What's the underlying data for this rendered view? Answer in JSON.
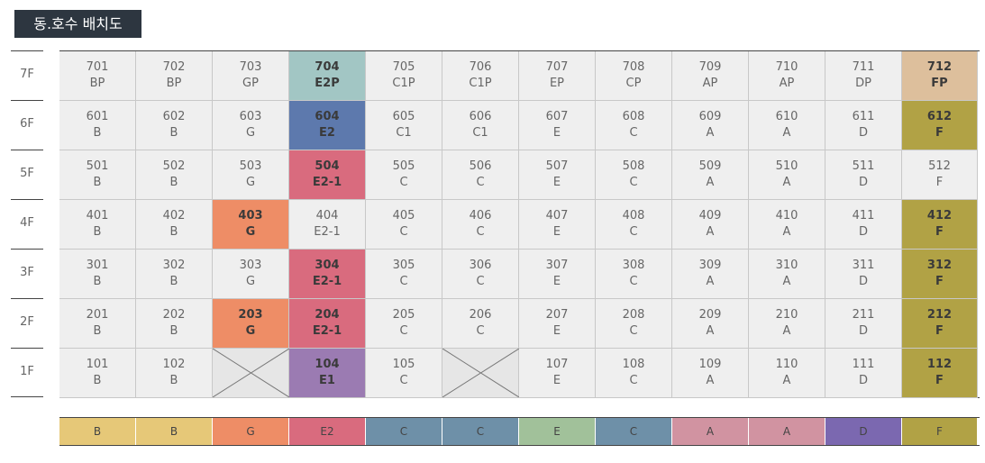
{
  "title": "동.호수 배치도",
  "colors": {
    "B": "#e6c878",
    "G": "#ee8d66",
    "E2": "#d96b7e",
    "E2P": "#a2c6c4",
    "E2_dark": "#5d79ad",
    "E1": "#9b7bb2",
    "C": "#6e90a8",
    "E": "#a1c19a",
    "A": "#d193a1",
    "D": "#7b68b0",
    "F": "#b1a245",
    "FP": "#ddbf9c",
    "cell": "#efefef"
  },
  "floors": [
    {
      "label": "7F",
      "units": [
        {
          "num": "701",
          "type": "BP"
        },
        {
          "num": "702",
          "type": "BP"
        },
        {
          "num": "703",
          "type": "GP"
        },
        {
          "num": "704",
          "type": "E2P",
          "color": "#a2c6c4",
          "bold": true
        },
        {
          "num": "705",
          "type": "C1P"
        },
        {
          "num": "706",
          "type": "C1P"
        },
        {
          "num": "707",
          "type": "EP"
        },
        {
          "num": "708",
          "type": "CP"
        },
        {
          "num": "709",
          "type": "AP"
        },
        {
          "num": "710",
          "type": "AP"
        },
        {
          "num": "711",
          "type": "DP"
        },
        {
          "num": "712",
          "type": "FP",
          "color": "#ddbf9c",
          "bold": true
        }
      ]
    },
    {
      "label": "6F",
      "units": [
        {
          "num": "601",
          "type": "B"
        },
        {
          "num": "602",
          "type": "B"
        },
        {
          "num": "603",
          "type": "G"
        },
        {
          "num": "604",
          "type": "E2",
          "color": "#5d79ad",
          "bold": true
        },
        {
          "num": "605",
          "type": "C1"
        },
        {
          "num": "606",
          "type": "C1"
        },
        {
          "num": "607",
          "type": "E"
        },
        {
          "num": "608",
          "type": "C"
        },
        {
          "num": "609",
          "type": "A"
        },
        {
          "num": "610",
          "type": "A"
        },
        {
          "num": "611",
          "type": "D"
        },
        {
          "num": "612",
          "type": "F",
          "color": "#b1a245",
          "bold": true
        }
      ]
    },
    {
      "label": "5F",
      "units": [
        {
          "num": "501",
          "type": "B"
        },
        {
          "num": "502",
          "type": "B"
        },
        {
          "num": "503",
          "type": "G"
        },
        {
          "num": "504",
          "type": "E2-1",
          "color": "#d96b7e",
          "bold": true
        },
        {
          "num": "505",
          "type": "C"
        },
        {
          "num": "506",
          "type": "C"
        },
        {
          "num": "507",
          "type": "E"
        },
        {
          "num": "508",
          "type": "C"
        },
        {
          "num": "509",
          "type": "A"
        },
        {
          "num": "510",
          "type": "A"
        },
        {
          "num": "511",
          "type": "D"
        },
        {
          "num": "512",
          "type": "F"
        }
      ]
    },
    {
      "label": "4F",
      "units": [
        {
          "num": "401",
          "type": "B"
        },
        {
          "num": "402",
          "type": "B"
        },
        {
          "num": "403",
          "type": "G",
          "color": "#ee8d66",
          "bold": true
        },
        {
          "num": "404",
          "type": "E2-1"
        },
        {
          "num": "405",
          "type": "C"
        },
        {
          "num": "406",
          "type": "C"
        },
        {
          "num": "407",
          "type": "E"
        },
        {
          "num": "408",
          "type": "C"
        },
        {
          "num": "409",
          "type": "A"
        },
        {
          "num": "410",
          "type": "A"
        },
        {
          "num": "411",
          "type": "D"
        },
        {
          "num": "412",
          "type": "F",
          "color": "#b1a245",
          "bold": true
        }
      ]
    },
    {
      "label": "3F",
      "units": [
        {
          "num": "301",
          "type": "B"
        },
        {
          "num": "302",
          "type": "B"
        },
        {
          "num": "303",
          "type": "G"
        },
        {
          "num": "304",
          "type": "E2-1",
          "color": "#d96b7e",
          "bold": true
        },
        {
          "num": "305",
          "type": "C"
        },
        {
          "num": "306",
          "type": "C"
        },
        {
          "num": "307",
          "type": "E"
        },
        {
          "num": "308",
          "type": "C"
        },
        {
          "num": "309",
          "type": "A"
        },
        {
          "num": "310",
          "type": "A"
        },
        {
          "num": "311",
          "type": "D"
        },
        {
          "num": "312",
          "type": "F",
          "color": "#b1a245",
          "bold": true
        }
      ]
    },
    {
      "label": "2F",
      "units": [
        {
          "num": "201",
          "type": "B"
        },
        {
          "num": "202",
          "type": "B"
        },
        {
          "num": "203",
          "type": "G",
          "color": "#ee8d66",
          "bold": true
        },
        {
          "num": "204",
          "type": "E2-1",
          "color": "#d96b7e",
          "bold": true
        },
        {
          "num": "205",
          "type": "C"
        },
        {
          "num": "206",
          "type": "C"
        },
        {
          "num": "207",
          "type": "E"
        },
        {
          "num": "208",
          "type": "C"
        },
        {
          "num": "209",
          "type": "A"
        },
        {
          "num": "210",
          "type": "A"
        },
        {
          "num": "211",
          "type": "D"
        },
        {
          "num": "212",
          "type": "F",
          "color": "#b1a245",
          "bold": true
        }
      ]
    },
    {
      "label": "1F",
      "units": [
        {
          "num": "101",
          "type": "B"
        },
        {
          "num": "102",
          "type": "B"
        },
        {
          "empty": true
        },
        {
          "num": "104",
          "type": "E1",
          "color": "#9b7bb2",
          "bold": true
        },
        {
          "num": "105",
          "type": "C"
        },
        {
          "empty": true
        },
        {
          "num": "107",
          "type": "E"
        },
        {
          "num": "108",
          "type": "C"
        },
        {
          "num": "109",
          "type": "A"
        },
        {
          "num": "110",
          "type": "A"
        },
        {
          "num": "111",
          "type": "D"
        },
        {
          "num": "112",
          "type": "F",
          "color": "#b1a245",
          "bold": true
        }
      ]
    }
  ],
  "legend": [
    {
      "label": "B",
      "color": "#e6c878"
    },
    {
      "label": "B",
      "color": "#e6c878"
    },
    {
      "label": "G",
      "color": "#ee8d66"
    },
    {
      "label": "E2",
      "color": "#d96b7e"
    },
    {
      "label": "C",
      "color": "#6e90a8"
    },
    {
      "label": "C",
      "color": "#6e90a8"
    },
    {
      "label": "E",
      "color": "#a1c19a"
    },
    {
      "label": "C",
      "color": "#6e90a8"
    },
    {
      "label": "A",
      "color": "#d193a1"
    },
    {
      "label": "A",
      "color": "#d193a1"
    },
    {
      "label": "D",
      "color": "#7b68b0"
    },
    {
      "label": "F",
      "color": "#b1a245"
    }
  ]
}
